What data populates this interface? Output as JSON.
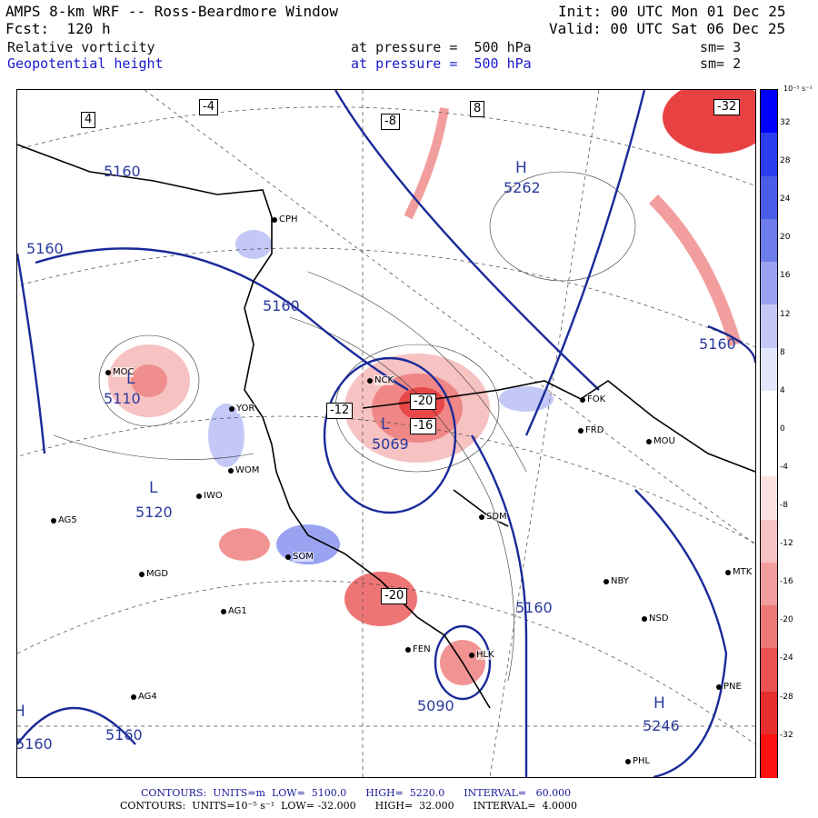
{
  "header": {
    "model": "AMPS 8-km WRF -- Ross-Beardmore Window",
    "init": "Init: 00 UTC Mon 01 Dec 25",
    "fcst": "Fcst:  120 h",
    "valid": "Valid: 00 UTC Sat 06 Dec 25",
    "field1_name": "Relative vorticity",
    "field1_level": "at pressure =  500 hPa",
    "field1_sm": "sm= 3",
    "field2_name": "Geopotential height",
    "field2_level": "at pressure =  500 hPa",
    "field2_sm": "sm= 2"
  },
  "colorbar": {
    "units": "10⁻⁵ s⁻¹",
    "ticks": [
      "32",
      "28",
      "24",
      "20",
      "16",
      "12",
      "8",
      "4",
      "0",
      "-4",
      "-8",
      "-12",
      "-16",
      "-20",
      "-24",
      "-28",
      "-32"
    ],
    "colors": [
      "#0000ff",
      "#2a3ef0",
      "#4a5de8",
      "#6e7cec",
      "#9aa3f2",
      "#c3c8f7",
      "#e3e5fb",
      "#ffffff",
      "#ffffff",
      "#fbe1e1",
      "#f6c2c2",
      "#f29e9e",
      "#ee7878",
      "#ea5252",
      "#e62c2c",
      "#ff1010"
    ]
  },
  "footer": {
    "line1": "CONTOURS:  UNITS=m  LOW=  5100.0      HIGH=  5220.0      INTERVAL=   60.000",
    "line2": "CONTOURS:  UNITS=10⁻⁵ s⁻¹  LOW= -32.000      HIGH=  32.000      INTERVAL=  4.0000"
  },
  "map": {
    "stations": [
      {
        "id": "CPH"
      },
      {
        "id": "MOC"
      },
      {
        "id": "NCK"
      },
      {
        "id": "FOK"
      },
      {
        "id": "FRD"
      },
      {
        "id": "MOU"
      },
      {
        "id": "YOR"
      },
      {
        "id": "WOM"
      },
      {
        "id": "IWO"
      },
      {
        "id": "AG5"
      },
      {
        "id": "SOM"
      },
      {
        "id": "MGD"
      },
      {
        "id": "AG1"
      },
      {
        "id": "SDM"
      },
      {
        "id": "NBY"
      },
      {
        "id": "MTK"
      },
      {
        "id": "NSD"
      },
      {
        "id": "FEN"
      },
      {
        "id": "HLK"
      },
      {
        "id": "AG4"
      },
      {
        "id": "PNE"
      },
      {
        "id": "PHL"
      }
    ],
    "height_labels": [
      "5160",
      "5262",
      "5160",
      "5160",
      "5110",
      "5069",
      "5120",
      "5160",
      "5090",
      "5160",
      "5160",
      "5246",
      "5160"
    ],
    "pressure_centers": [
      "H",
      "H",
      "H",
      "L",
      "L",
      "L"
    ],
    "vorticity_labels": [
      "4",
      "-4",
      "-8",
      "8",
      "-12",
      "-16",
      "-20",
      "-32",
      "-20"
    ]
  }
}
